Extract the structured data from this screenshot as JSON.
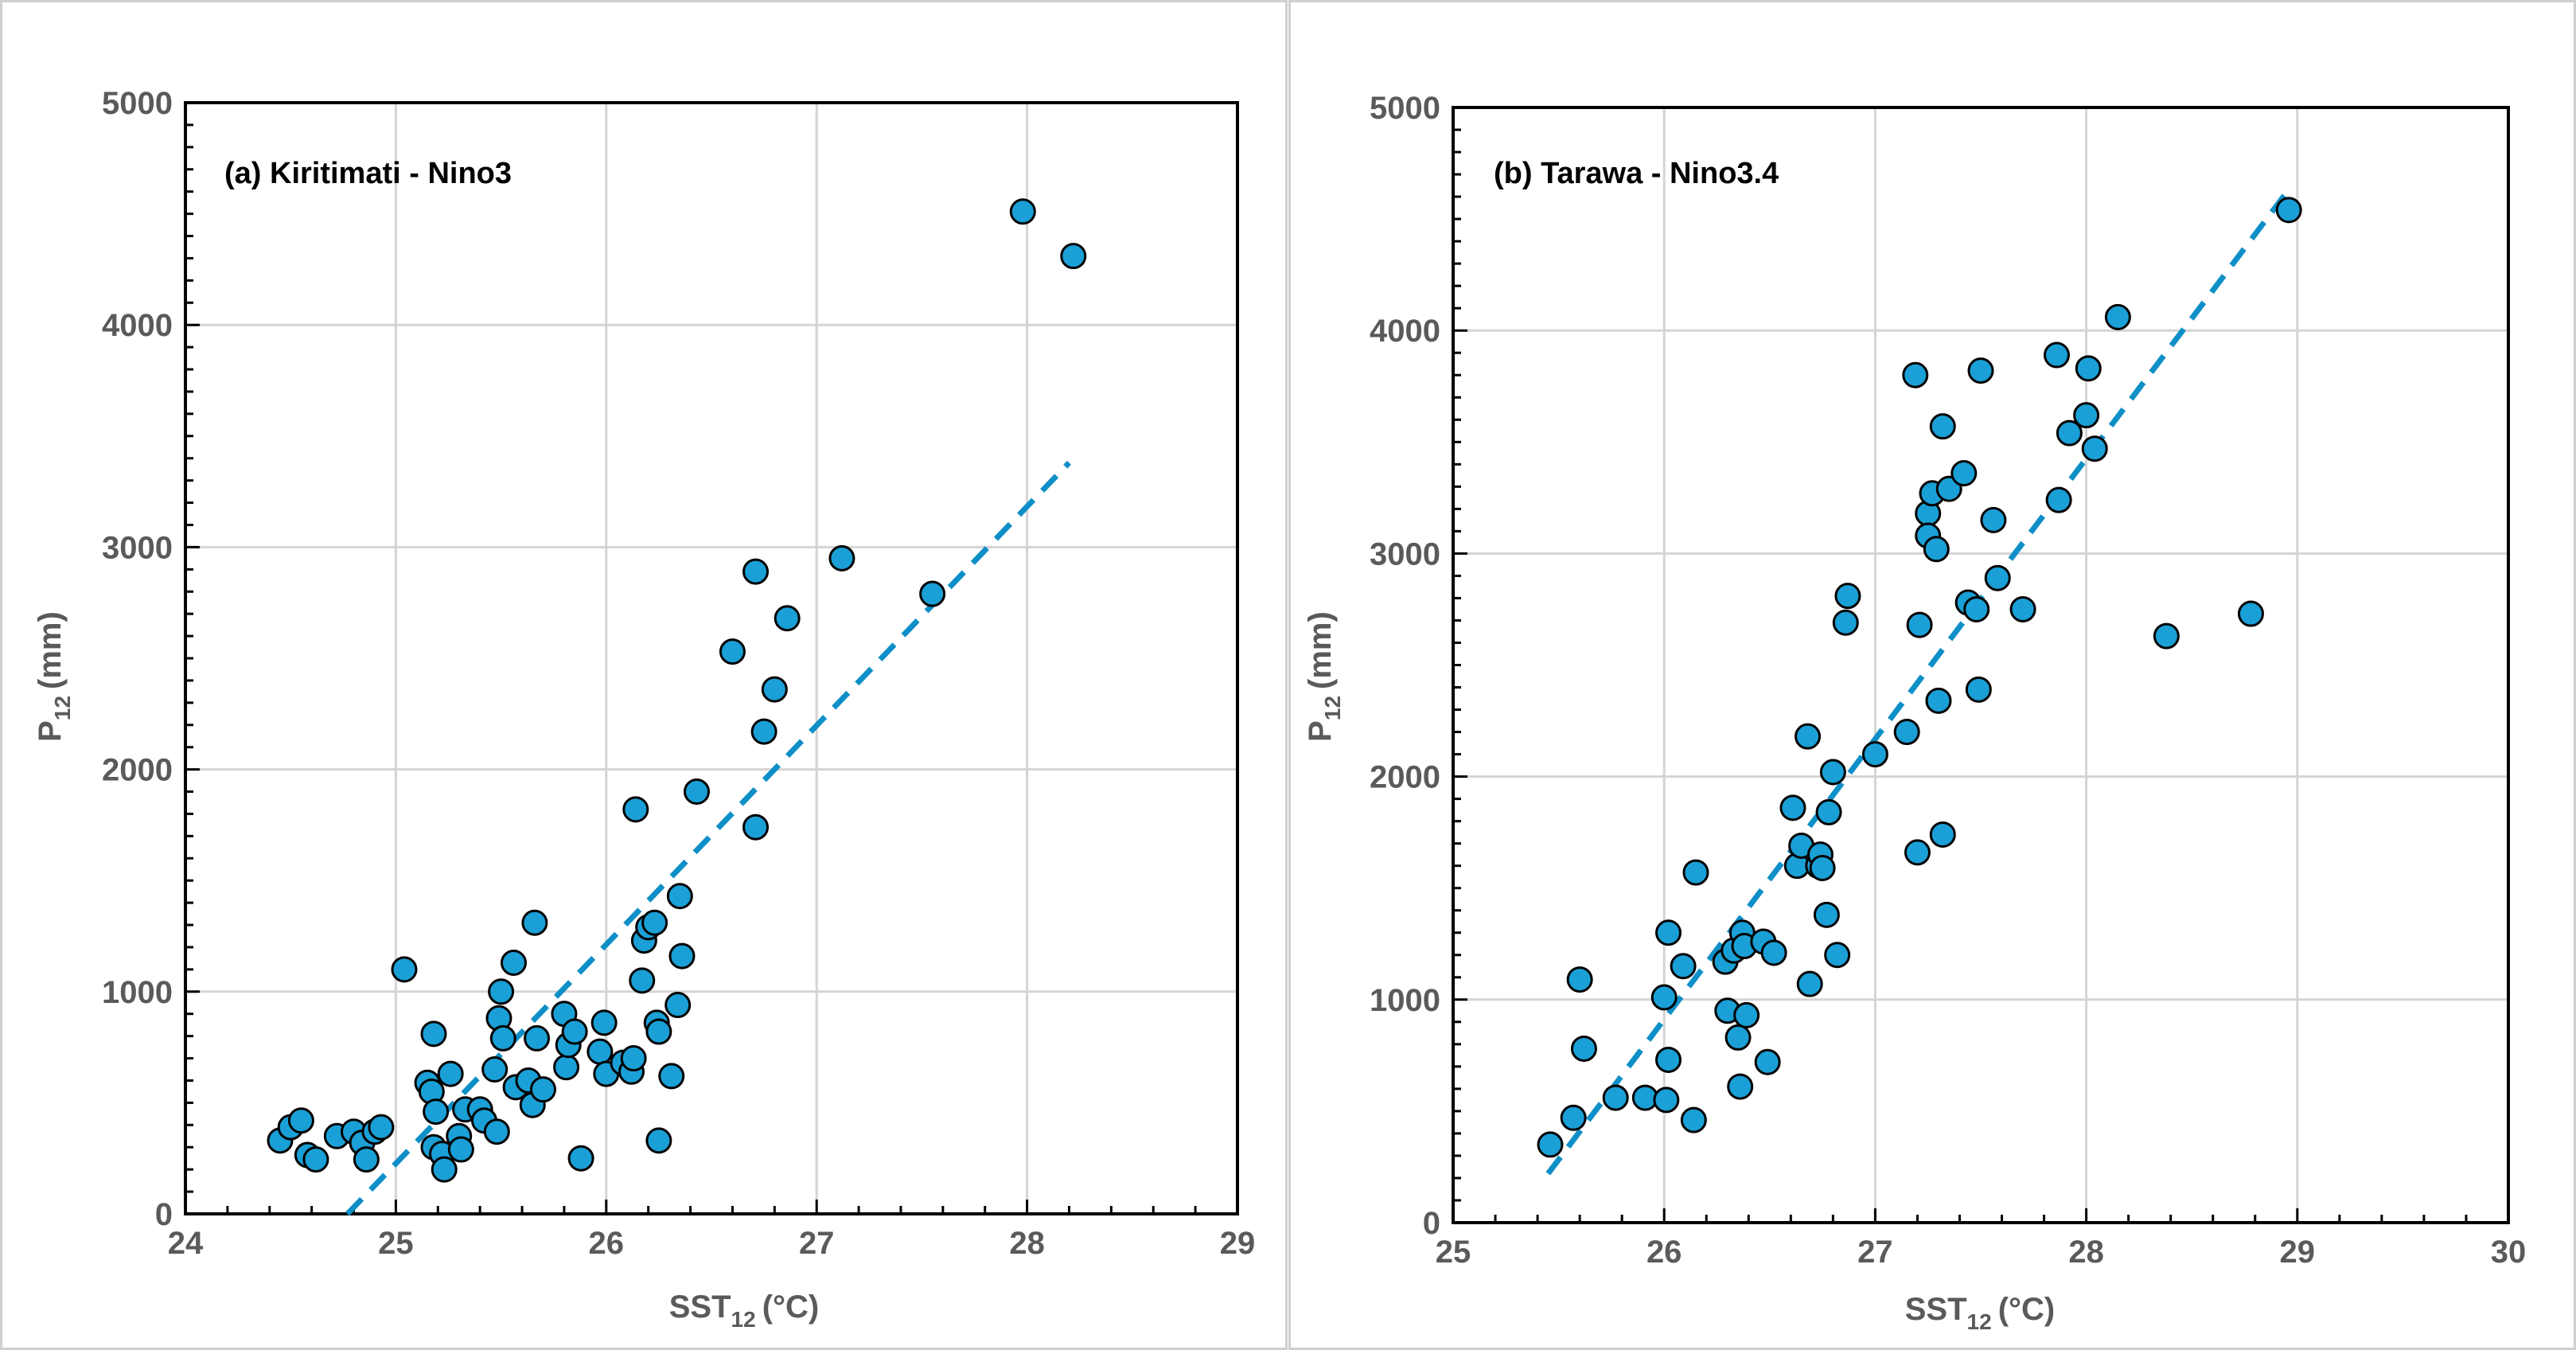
{
  "chart_data": [
    {
      "type": "scatter",
      "title": "(a) Kiritimati - Nino3",
      "xlabel": "SST",
      "xlabel_sub": "12",
      "xlabel_unit": "(°C)",
      "ylabel": "P",
      "ylabel_sub": "12",
      "ylabel_unit": "(mm)",
      "xlim": [
        24,
        29
      ],
      "ylim": [
        0,
        5000
      ],
      "xticks": [
        "24",
        "25",
        "26",
        "27",
        "28",
        "29"
      ],
      "yticks": [
        "0",
        "1000",
        "2000",
        "3000",
        "4000",
        "5000"
      ],
      "grid": true,
      "point_color": "#1aa0d6",
      "trend_color": "#0e8fc7",
      "trendline": [
        [
          24.77,
          0
        ],
        [
          28.2,
          3380
        ]
      ],
      "series": [
        {
          "name": "Kiritimati",
          "points": [
            [
              24.45,
              330
            ],
            [
              24.5,
              390
            ],
            [
              24.55,
              420
            ],
            [
              24.58,
              265
            ],
            [
              24.62,
              245
            ],
            [
              24.72,
              350
            ],
            [
              24.8,
              370
            ],
            [
              24.84,
              320
            ],
            [
              24.86,
              245
            ],
            [
              24.9,
              370
            ],
            [
              24.93,
              390
            ],
            [
              25.04,
              1100
            ],
            [
              25.15,
              590
            ],
            [
              25.17,
              550
            ],
            [
              25.18,
              810
            ],
            [
              25.18,
              300
            ],
            [
              25.19,
              460
            ],
            [
              25.22,
              270
            ],
            [
              25.23,
              200
            ],
            [
              25.26,
              630
            ],
            [
              25.3,
              350
            ],
            [
              25.31,
              290
            ],
            [
              25.33,
              470
            ],
            [
              25.4,
              470
            ],
            [
              25.42,
              420
            ],
            [
              25.47,
              650
            ],
            [
              25.48,
              370
            ],
            [
              25.49,
              880
            ],
            [
              25.5,
              1000
            ],
            [
              25.51,
              790
            ],
            [
              25.56,
              1130
            ],
            [
              25.57,
              570
            ],
            [
              25.63,
              600
            ],
            [
              25.65,
              490
            ],
            [
              25.66,
              1310
            ],
            [
              25.67,
              790
            ],
            [
              25.7,
              560
            ],
            [
              25.8,
              900
            ],
            [
              25.81,
              660
            ],
            [
              25.82,
              760
            ],
            [
              25.85,
              820
            ],
            [
              25.88,
              250
            ],
            [
              25.97,
              730
            ],
            [
              25.99,
              860
            ],
            [
              26.0,
              630
            ],
            [
              26.08,
              680
            ],
            [
              26.12,
              640
            ],
            [
              26.13,
              700
            ],
            [
              26.14,
              1820
            ],
            [
              26.17,
              1050
            ],
            [
              26.18,
              1230
            ],
            [
              26.2,
              1290
            ],
            [
              26.23,
              1310
            ],
            [
              26.24,
              860
            ],
            [
              26.25,
              820
            ],
            [
              26.25,
              330
            ],
            [
              26.31,
              620
            ],
            [
              26.34,
              940
            ],
            [
              26.35,
              1430
            ],
            [
              26.36,
              1160
            ],
            [
              26.43,
              1900
            ],
            [
              26.6,
              2530
            ],
            [
              26.71,
              1740
            ],
            [
              26.71,
              2890
            ],
            [
              26.75,
              2170
            ],
            [
              26.8,
              2360
            ],
            [
              26.86,
              2680
            ],
            [
              27.12,
              2950
            ],
            [
              27.55,
              2790
            ],
            [
              27.98,
              4510
            ],
            [
              28.22,
              4310
            ]
          ]
        }
      ]
    },
    {
      "type": "scatter",
      "title": "(b) Tarawa - Nino3.4",
      "xlabel": "SST",
      "xlabel_sub": "12",
      "xlabel_unit": "(°C)",
      "ylabel": "P",
      "ylabel_sub": "12",
      "ylabel_unit": "(mm)",
      "xlim": [
        25,
        30
      ],
      "ylim": [
        0,
        5000
      ],
      "xticks": [
        "25",
        "26",
        "27",
        "28",
        "29",
        "30"
      ],
      "yticks": [
        "0",
        "1000",
        "2000",
        "3000",
        "4000",
        "5000"
      ],
      "grid": true,
      "point_color": "#1aa0d6",
      "trend_color": "#0e8fc7",
      "trendline": [
        [
          25.45,
          220
        ],
        [
          28.95,
          4620
        ]
      ],
      "series": [
        {
          "name": "Tarawa",
          "points": [
            [
              25.46,
              350
            ],
            [
              25.57,
              470
            ],
            [
              25.6,
              1090
            ],
            [
              25.62,
              780
            ],
            [
              25.77,
              560
            ],
            [
              25.91,
              560
            ],
            [
              26.0,
              1010
            ],
            [
              26.01,
              550
            ],
            [
              26.02,
              1300
            ],
            [
              26.02,
              730
            ],
            [
              26.09,
              1150
            ],
            [
              26.14,
              460
            ],
            [
              26.15,
              1570
            ],
            [
              26.29,
              1170
            ],
            [
              26.3,
              950
            ],
            [
              26.33,
              1220
            ],
            [
              26.35,
              830
            ],
            [
              26.36,
              610
            ],
            [
              26.37,
              1300
            ],
            [
              26.38,
              1240
            ],
            [
              26.39,
              930
            ],
            [
              26.47,
              1260
            ],
            [
              26.49,
              720
            ],
            [
              26.52,
              1210
            ],
            [
              26.61,
              1860
            ],
            [
              26.63,
              1600
            ],
            [
              26.65,
              1690
            ],
            [
              26.68,
              2180
            ],
            [
              26.69,
              1070
            ],
            [
              26.73,
              1600
            ],
            [
              26.74,
              1650
            ],
            [
              26.75,
              1590
            ],
            [
              26.77,
              1380
            ],
            [
              26.78,
              1840
            ],
            [
              26.8,
              2020
            ],
            [
              26.82,
              1200
            ],
            [
              26.86,
              2690
            ],
            [
              26.87,
              2810
            ],
            [
              27.0,
              2100
            ],
            [
              27.15,
              2200
            ],
            [
              27.19,
              3800
            ],
            [
              27.2,
              1660
            ],
            [
              27.21,
              2680
            ],
            [
              27.25,
              3180
            ],
            [
              27.25,
              3080
            ],
            [
              27.27,
              3270
            ],
            [
              27.29,
              3020
            ],
            [
              27.3,
              2340
            ],
            [
              27.32,
              3570
            ],
            [
              27.32,
              1740
            ],
            [
              27.35,
              3290
            ],
            [
              27.42,
              3360
            ],
            [
              27.44,
              2780
            ],
            [
              27.48,
              2750
            ],
            [
              27.49,
              2390
            ],
            [
              27.5,
              3820
            ],
            [
              27.56,
              3150
            ],
            [
              27.58,
              2890
            ],
            [
              27.7,
              2750
            ],
            [
              27.86,
              3890
            ],
            [
              27.87,
              3240
            ],
            [
              27.92,
              3540
            ],
            [
              28.0,
              3620
            ],
            [
              28.01,
              3830
            ],
            [
              28.04,
              3470
            ],
            [
              28.15,
              4060
            ],
            [
              28.38,
              2630
            ],
            [
              28.78,
              2730
            ],
            [
              28.96,
              4540
            ]
          ]
        }
      ]
    }
  ]
}
